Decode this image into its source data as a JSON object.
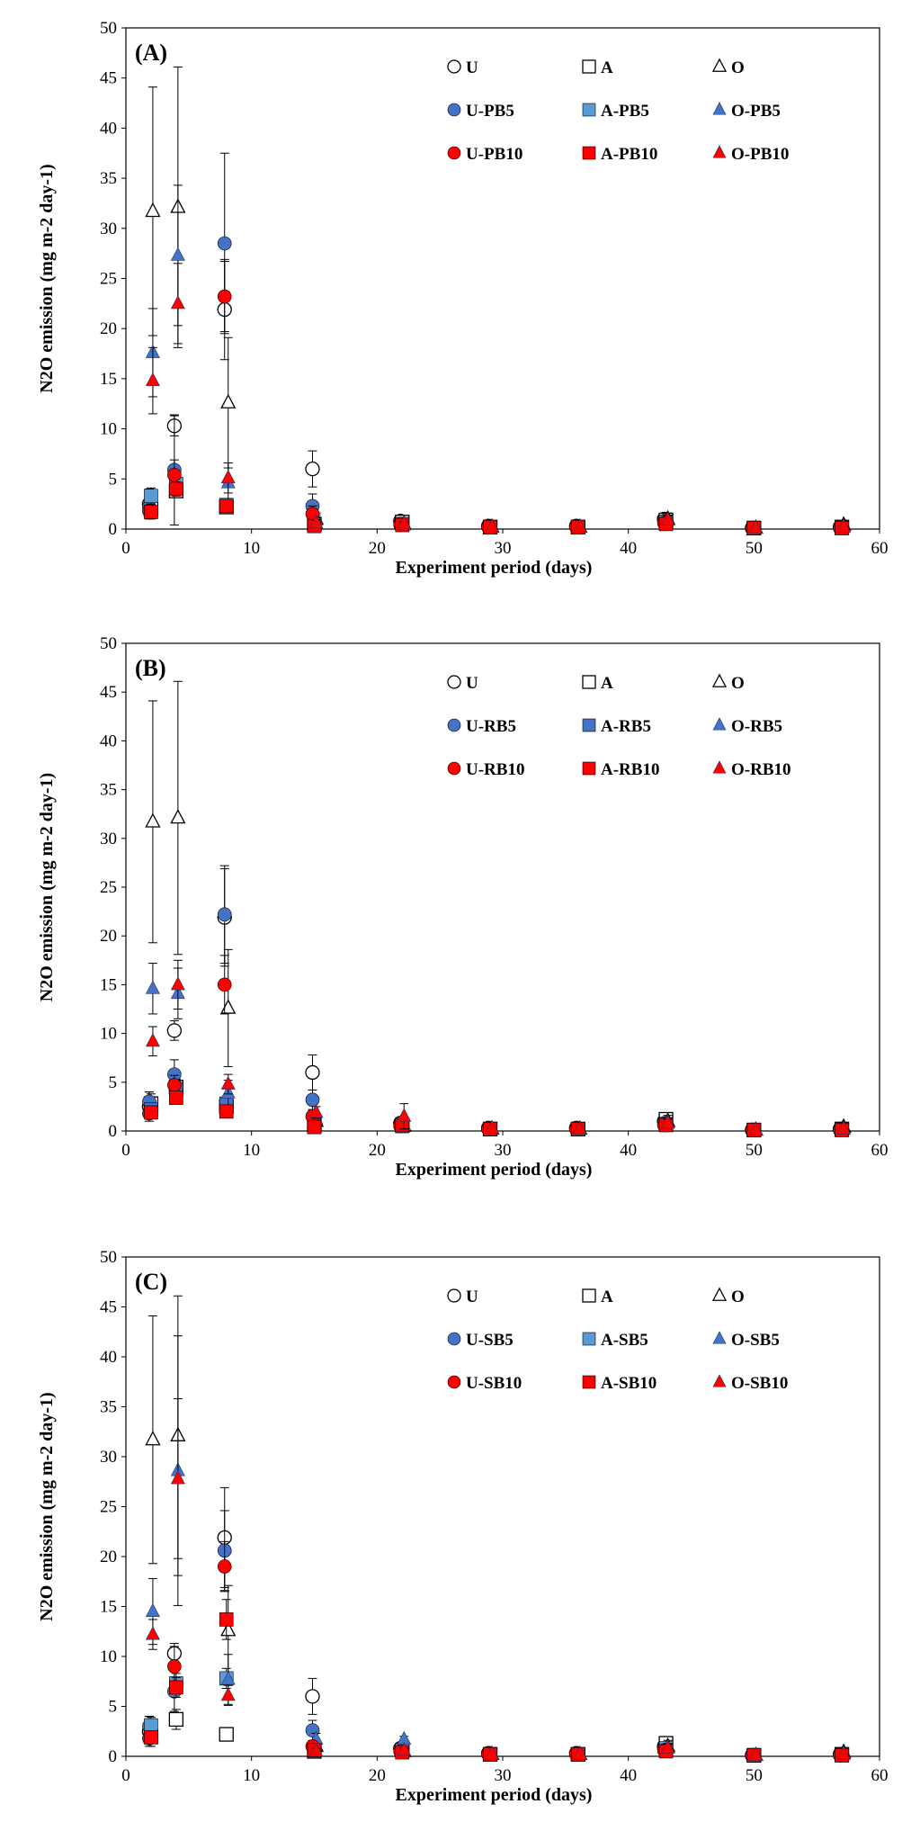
{
  "figure": {
    "colors": {
      "white": "#ffffff",
      "black": "#000000",
      "blue": "#4472c4",
      "blue_sq": "#5b9bd5",
      "red": "#ff0000"
    }
  },
  "chart_data": [
    {
      "type": "scatter",
      "panel_label": "(A)",
      "xlabel": "Experiment period (days)",
      "ylabel": "N2O emission (mg m-2 day-1)",
      "xlim": [
        0,
        60
      ],
      "ylim": [
        0,
        50
      ],
      "x_ticks": [
        "0",
        "10",
        "20",
        "30",
        "40",
        "50",
        "60"
      ],
      "y_ticks": [
        "0",
        "5",
        "10",
        "15",
        "20",
        "25",
        "30",
        "35",
        "40",
        "45",
        "50"
      ],
      "legend_position": "top-right",
      "x": [
        2,
        4,
        8,
        15,
        22,
        29,
        36,
        43,
        50,
        57
      ],
      "series": [
        {
          "name": "U",
          "marker": "circle",
          "fill": "white",
          "values": [
            2.5,
            10.3,
            21.9,
            6.0,
            0.8,
            0.3,
            0.3,
            1.0,
            0.1,
            0.2
          ],
          "errors": [
            1.5,
            1.0,
            5.0,
            1.8,
            0.3,
            0.2,
            0.2,
            0.5,
            0.1,
            0.1
          ]
        },
        {
          "name": "A",
          "marker": "square",
          "fill": "white",
          "values": [
            2.0,
            3.8,
            2.2,
            0.5,
            0.7,
            0.2,
            0.2,
            0.9,
            0.1,
            0.2
          ],
          "errors": [
            1.0,
            0.5,
            0.5,
            0.2,
            0.2,
            0.1,
            0.1,
            0.4,
            0.1,
            0.1
          ]
        },
        {
          "name": "O",
          "marker": "triangle",
          "fill": "white",
          "values": [
            31.7,
            32.1,
            12.6,
            1.0,
            0.5,
            0.2,
            0.2,
            1.0,
            0.1,
            0.4
          ],
          "errors": [
            12.4,
            14.0,
            6.5,
            0.6,
            0.3,
            0.1,
            0.1,
            0.6,
            0.1,
            0.2
          ]
        },
        {
          "name": "U-PB5",
          "marker": "circle",
          "fill": "blue",
          "values": [
            2.2,
            5.9,
            28.5,
            2.3,
            0.4,
            0.2,
            0.2,
            0.8,
            0.1,
            0.2
          ],
          "errors": [
            1.0,
            5.5,
            9.0,
            1.2,
            0.2,
            0.1,
            0.1,
            0.4,
            0.1,
            0.1
          ]
        },
        {
          "name": "A-PB5",
          "marker": "square",
          "fill": "blue_sq",
          "values": [
            3.3,
            4.5,
            2.4,
            0.4,
            0.5,
            0.2,
            0.2,
            0.7,
            0.1,
            0.1
          ],
          "errors": [
            0.8,
            1.0,
            0.5,
            0.2,
            0.2,
            0.1,
            0.1,
            0.3,
            0.1,
            0.1
          ]
        },
        {
          "name": "O-PB5",
          "marker": "triangle",
          "fill": "blue",
          "values": [
            17.6,
            27.3,
            4.6,
            0.9,
            0.4,
            0.2,
            0.2,
            0.9,
            0.1,
            0.2
          ],
          "errors": [
            4.4,
            7.0,
            2.0,
            0.5,
            0.2,
            0.1,
            0.1,
            0.5,
            0.1,
            0.1
          ]
        },
        {
          "name": "U-PB10",
          "marker": "circle",
          "fill": "red",
          "values": [
            1.8,
            5.4,
            23.2,
            1.5,
            0.5,
            0.2,
            0.2,
            0.6,
            0.1,
            0.1
          ],
          "errors": [
            0.6,
            1.5,
            3.5,
            0.8,
            0.2,
            0.1,
            0.1,
            0.3,
            0.1,
            0.1
          ]
        },
        {
          "name": "A-PB10",
          "marker": "square",
          "fill": "red",
          "values": [
            1.7,
            4.0,
            2.3,
            0.3,
            0.4,
            0.2,
            0.2,
            0.5,
            0.1,
            0.1
          ],
          "errors": [
            0.5,
            0.7,
            0.5,
            0.2,
            0.2,
            0.1,
            0.1,
            0.3,
            0.1,
            0.1
          ]
        },
        {
          "name": "O-PB10",
          "marker": "triangle",
          "fill": "red",
          "values": [
            14.8,
            22.5,
            5.1,
            0.6,
            0.5,
            0.2,
            0.2,
            0.9,
            0.1,
            0.2
          ],
          "errors": [
            3.3,
            4.0,
            1.5,
            0.3,
            0.2,
            0.1,
            0.1,
            0.4,
            0.1,
            0.1
          ]
        }
      ]
    },
    {
      "type": "scatter",
      "panel_label": "(B)",
      "xlabel": "Experiment period (days)",
      "ylabel": "N2O emission (mg m-2 day-1)",
      "xlim": [
        0,
        60
      ],
      "ylim": [
        0,
        50
      ],
      "x_ticks": [
        "0",
        "10",
        "20",
        "30",
        "40",
        "50",
        "60"
      ],
      "y_ticks": [
        "0",
        "5",
        "10",
        "15",
        "20",
        "25",
        "30",
        "35",
        "40",
        "45",
        "50"
      ],
      "legend_position": "top-right",
      "x": [
        2,
        4,
        8,
        15,
        22,
        29,
        36,
        43,
        50,
        57
      ],
      "series": [
        {
          "name": "U",
          "marker": "circle",
          "fill": "white",
          "values": [
            2.5,
            10.3,
            21.9,
            6.0,
            0.8,
            0.3,
            0.3,
            1.0,
            0.1,
            0.2
          ],
          "errors": [
            1.5,
            1.0,
            5.0,
            1.8,
            0.3,
            0.2,
            0.2,
            0.5,
            0.1,
            0.1
          ]
        },
        {
          "name": "A",
          "marker": "square",
          "fill": "white",
          "values": [
            2.8,
            4.5,
            2.5,
            0.6,
            0.6,
            0.2,
            0.2,
            1.2,
            0.1,
            0.2
          ],
          "errors": [
            1.0,
            0.8,
            0.5,
            0.2,
            0.2,
            0.1,
            0.1,
            0.4,
            0.1,
            0.1
          ]
        },
        {
          "name": "O",
          "marker": "triangle",
          "fill": "white",
          "values": [
            31.7,
            32.1,
            12.6,
            1.0,
            0.5,
            0.2,
            0.2,
            1.0,
            0.1,
            0.4
          ],
          "errors": [
            12.4,
            14.0,
            6.0,
            0.6,
            0.3,
            0.1,
            0.1,
            0.6,
            0.1,
            0.2
          ]
        },
        {
          "name": "U-RB5",
          "marker": "circle",
          "fill": "blue",
          "values": [
            3.0,
            5.8,
            22.2,
            3.2,
            0.5,
            0.2,
            0.2,
            0.8,
            0.1,
            0.1
          ],
          "errors": [
            1.0,
            1.5,
            5.0,
            1.0,
            0.3,
            0.1,
            0.1,
            0.4,
            0.1,
            0.1
          ]
        },
        {
          "name": "A-RB5",
          "marker": "square",
          "fill": "blue",
          "values": [
            2.2,
            4.3,
            2.8,
            0.5,
            0.5,
            0.2,
            0.2,
            0.7,
            0.1,
            0.1
          ],
          "errors": [
            0.6,
            0.8,
            0.5,
            0.2,
            0.2,
            0.1,
            0.1,
            0.3,
            0.1,
            0.1
          ]
        },
        {
          "name": "O-RB5",
          "marker": "triangle",
          "fill": "blue",
          "values": [
            14.6,
            14.1,
            3.9,
            1.2,
            0.6,
            0.2,
            0.2,
            0.9,
            0.1,
            0.2
          ],
          "errors": [
            2.6,
            2.6,
            1.3,
            0.6,
            0.3,
            0.1,
            0.1,
            0.4,
            0.1,
            0.1
          ]
        },
        {
          "name": "U-RB10",
          "marker": "circle",
          "fill": "red",
          "values": [
            1.8,
            4.7,
            15.0,
            1.5,
            0.6,
            0.2,
            0.2,
            0.6,
            0.1,
            0.1
          ],
          "errors": [
            0.5,
            1.0,
            3.0,
            0.6,
            0.3,
            0.1,
            0.1,
            0.3,
            0.1,
            0.1
          ]
        },
        {
          "name": "A-RB10",
          "marker": "square",
          "fill": "red",
          "values": [
            1.9,
            3.4,
            2.0,
            0.4,
            0.6,
            0.2,
            0.2,
            0.6,
            0.1,
            0.1
          ],
          "errors": [
            0.5,
            0.6,
            0.4,
            0.2,
            0.2,
            0.1,
            0.1,
            0.3,
            0.1,
            0.1
          ]
        },
        {
          "name": "O-RB10",
          "marker": "triangle",
          "fill": "red",
          "values": [
            9.2,
            15.0,
            4.8,
            1.9,
            1.5,
            0.3,
            0.2,
            0.8,
            0.1,
            0.2
          ],
          "errors": [
            1.5,
            2.5,
            1.0,
            0.6,
            1.3,
            0.1,
            0.1,
            0.4,
            0.1,
            0.1
          ]
        }
      ]
    },
    {
      "type": "scatter",
      "panel_label": "(C)",
      "xlabel": "Experiment period (days)",
      "ylabel": "N2O emission (mg m-2 day-1)",
      "xlim": [
        0,
        60
      ],
      "ylim": [
        0,
        50
      ],
      "x_ticks": [
        "0",
        "10",
        "20",
        "30",
        "40",
        "50",
        "60"
      ],
      "y_ticks": [
        "0",
        "5",
        "10",
        "15",
        "20",
        "25",
        "30",
        "35",
        "40",
        "45",
        "50"
      ],
      "legend_position": "top-right",
      "x": [
        2,
        4,
        8,
        15,
        22,
        29,
        36,
        43,
        50,
        57
      ],
      "series": [
        {
          "name": "U",
          "marker": "circle",
          "fill": "white",
          "values": [
            2.5,
            10.3,
            21.9,
            6.0,
            0.8,
            0.3,
            0.3,
            1.0,
            0.1,
            0.2
          ],
          "errors": [
            1.5,
            1.0,
            5.0,
            1.8,
            0.3,
            0.2,
            0.2,
            0.5,
            0.1,
            0.1
          ]
        },
        {
          "name": "A",
          "marker": "square",
          "fill": "white",
          "values": [
            2.0,
            3.7,
            2.2,
            0.5,
            0.6,
            0.2,
            0.2,
            1.3,
            0.1,
            0.2
          ],
          "errors": [
            1.0,
            1.0,
            0.3,
            0.2,
            0.2,
            0.1,
            0.1,
            0.4,
            0.1,
            0.1
          ]
        },
        {
          "name": "O",
          "marker": "triangle",
          "fill": "white",
          "values": [
            31.7,
            32.1,
            12.6,
            1.0,
            0.5,
            0.2,
            0.2,
            1.0,
            0.1,
            0.4
          ],
          "errors": [
            12.4,
            14.0,
            4.5,
            0.6,
            0.3,
            0.1,
            0.1,
            0.6,
            0.1,
            0.2
          ]
        },
        {
          "name": "U-SB5",
          "marker": "circle",
          "fill": "blue",
          "values": [
            3.0,
            6.5,
            20.6,
            2.6,
            0.5,
            0.2,
            0.2,
            0.8,
            0.1,
            0.1
          ],
          "errors": [
            1.0,
            2.0,
            4.0,
            1.0,
            0.3,
            0.1,
            0.1,
            0.4,
            0.1,
            0.1
          ]
        },
        {
          "name": "A-SB5",
          "marker": "square",
          "fill": "blue_sq",
          "values": [
            3.1,
            7.3,
            7.8,
            0.6,
            0.6,
            0.2,
            0.2,
            0.8,
            0.1,
            0.1
          ],
          "errors": [
            0.8,
            1.0,
            1.0,
            0.2,
            0.2,
            0.1,
            0.1,
            0.3,
            0.1,
            0.1
          ]
        },
        {
          "name": "O-SB5",
          "marker": "triangle",
          "fill": "blue",
          "values": [
            14.5,
            28.6,
            7.7,
            1.7,
            1.7,
            0.2,
            0.2,
            0.9,
            0.1,
            0.3
          ],
          "errors": [
            3.3,
            13.5,
            2.5,
            0.6,
            0.3,
            0.1,
            0.1,
            0.4,
            0.1,
            0.1
          ]
        },
        {
          "name": "U-SB10",
          "marker": "circle",
          "fill": "red",
          "values": [
            1.8,
            9.0,
            19.0,
            1.0,
            0.5,
            0.2,
            0.2,
            0.6,
            0.1,
            0.1
          ],
          "errors": [
            0.5,
            2.0,
            2.5,
            0.4,
            0.2,
            0.1,
            0.1,
            0.3,
            0.1,
            0.1
          ]
        },
        {
          "name": "A-SB10",
          "marker": "square",
          "fill": "red",
          "values": [
            1.9,
            6.9,
            13.7,
            0.6,
            0.4,
            0.2,
            0.2,
            0.5,
            0.1,
            0.1
          ],
          "errors": [
            0.5,
            1.0,
            2.0,
            0.2,
            0.2,
            0.1,
            0.1,
            0.3,
            0.1,
            0.1
          ]
        },
        {
          "name": "O-SB10",
          "marker": "triangle",
          "fill": "red",
          "values": [
            12.2,
            27.8,
            6.1,
            0.5,
            0.6,
            0.2,
            0.2,
            0.8,
            0.1,
            0.2
          ],
          "errors": [
            1.5,
            8.0,
            1.0,
            0.3,
            0.2,
            0.1,
            0.1,
            0.4,
            0.1,
            0.1
          ]
        }
      ]
    }
  ]
}
